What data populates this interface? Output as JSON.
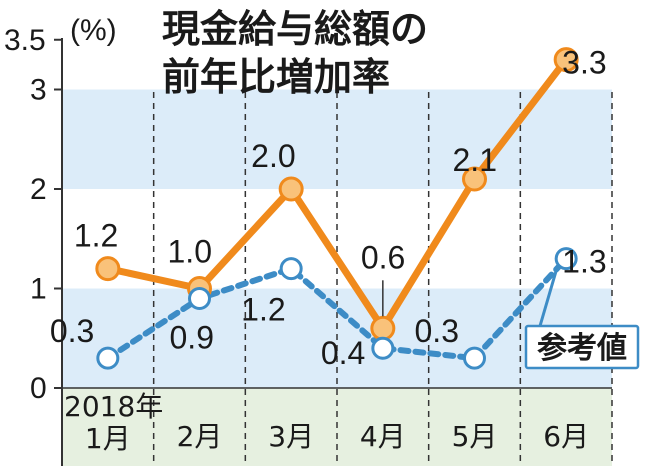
{
  "chart_data": {
    "type": "line",
    "title_line1": "現金給与総額の",
    "title_line2": "前年比増加率",
    "unit": "(%)",
    "ylim": [
      0,
      3.5
    ],
    "yticks": [
      "0",
      "1",
      "2",
      "3",
      "3.5"
    ],
    "year_label": "2018年",
    "categories": [
      "1月",
      "2月",
      "3月",
      "4月",
      "5月",
      "6月"
    ],
    "series": [
      {
        "name": "現金給与総額",
        "color": "#f08a1c",
        "marker_fill": "#f9c27a",
        "values": [
          1.2,
          1.0,
          2.0,
          0.6,
          2.1,
          3.3
        ],
        "labels": [
          "1.2",
          "1.0",
          "2.0",
          "0.6",
          "2.1",
          "3.3"
        ]
      },
      {
        "name": "参考値",
        "color": "#3d8cc6",
        "marker_fill": "#ffffff",
        "values": [
          0.3,
          0.9,
          1.2,
          0.4,
          0.3,
          1.3
        ],
        "labels": [
          "0.3",
          "0.9",
          "1.2",
          "0.4",
          "0.3",
          "1.3"
        ]
      }
    ],
    "legend_label": "参考値",
    "band_color": "#dcecf9",
    "xaxis_bg_color": "#e6f0e0"
  }
}
